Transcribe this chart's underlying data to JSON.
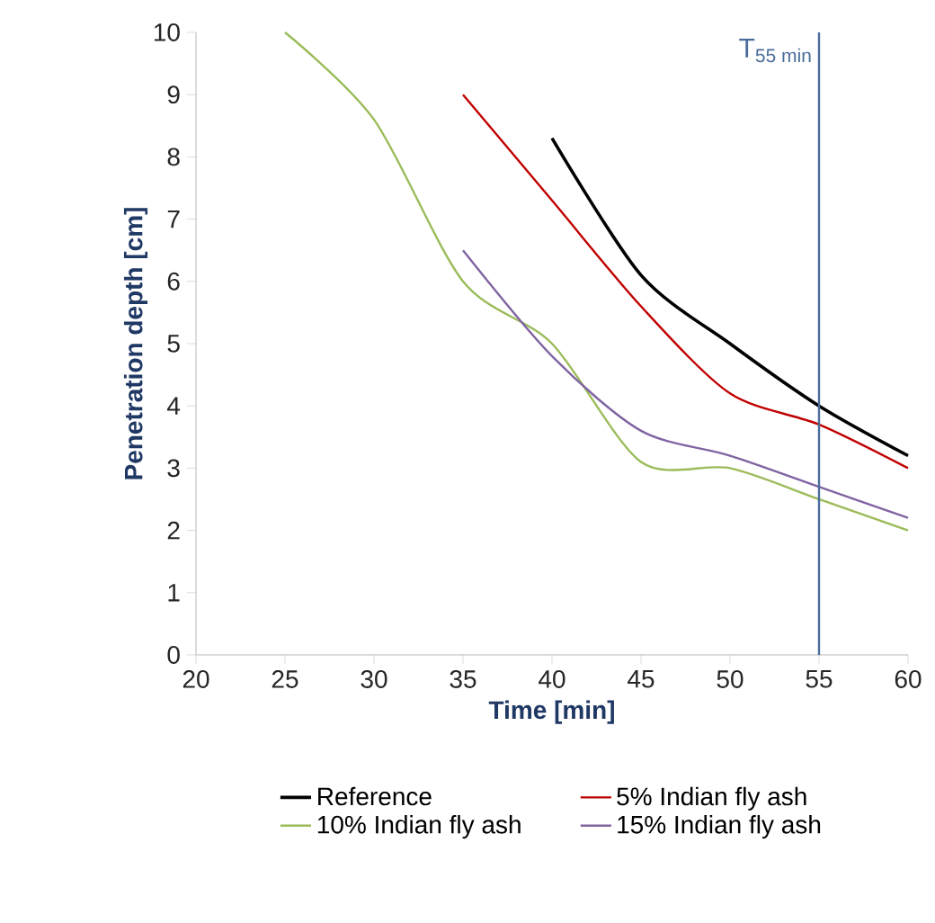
{
  "chart_data": {
    "type": "line",
    "xlabel": "Time [min]",
    "ylabel": "Penetration depth [cm]",
    "xlim": [
      20,
      60
    ],
    "ylim": [
      0,
      10
    ],
    "xticks": [
      20,
      25,
      30,
      35,
      40,
      45,
      50,
      55,
      60
    ],
    "yticks": [
      0,
      1,
      2,
      3,
      4,
      5,
      6,
      7,
      8,
      9,
      10
    ],
    "legend": "bottom",
    "line_style": "solid",
    "series": [
      {
        "name": "Reference",
        "color": "#000000",
        "x": [
          40,
          45,
          50,
          55,
          60
        ],
        "values": [
          8.3,
          6.1,
          5.0,
          4.0,
          3.2
        ]
      },
      {
        "name": "5% Indian fly ash",
        "color": "#c00000",
        "x": [
          35,
          40,
          45,
          50,
          55,
          60
        ],
        "values": [
          9.0,
          7.3,
          5.6,
          4.2,
          3.7,
          3.0
        ]
      },
      {
        "name": "10% Indian fly ash",
        "color": "#9bbb59",
        "x": [
          25,
          30,
          35,
          40,
          45,
          50,
          55,
          60
        ],
        "values": [
          10,
          8.6,
          6.0,
          5.0,
          3.1,
          3.0,
          2.5,
          2.0
        ]
      },
      {
        "name": "15% Indian fly ash",
        "color": "#8064a2",
        "x": [
          35,
          40,
          45,
          50,
          55,
          60
        ],
        "values": [
          6.5,
          4.8,
          3.6,
          3.2,
          2.7,
          2.2
        ]
      }
    ],
    "ref_lines": [
      {
        "axis": "x",
        "value": 55,
        "label": "T$_{55 min}$",
        "color": "#4a6c9b"
      }
    ]
  }
}
